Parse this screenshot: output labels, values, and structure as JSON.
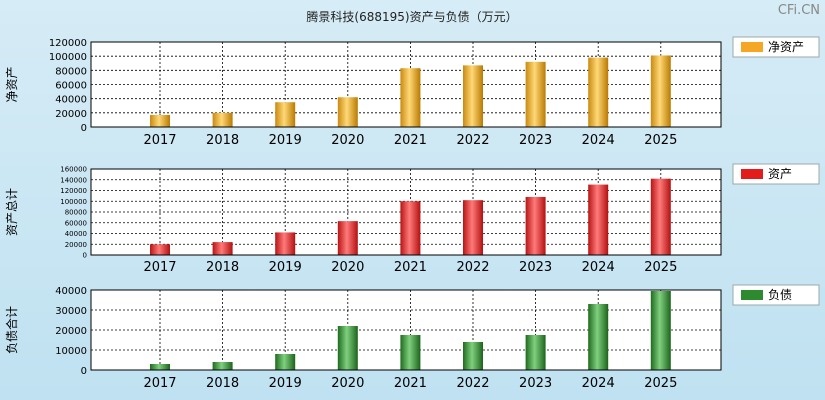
{
  "chart_data": {
    "type": "bar",
    "title": "腾景科技(688195)资产与负债（万元）",
    "watermark": "CFi.CN",
    "categories": [
      "2017",
      "2018",
      "2019",
      "2020",
      "2021",
      "2022",
      "2023",
      "2024",
      "2025"
    ],
    "panels": [
      {
        "name": "净资产",
        "ylabel": "净资产",
        "legend": "净资产",
        "color": "#f5a623",
        "ylim": [
          0,
          120000
        ],
        "yticks": [
          "0",
          "20000",
          "40000",
          "60000",
          "80000",
          "100000",
          "120000"
        ],
        "values": [
          17000,
          20000,
          35000,
          42000,
          83000,
          87000,
          92000,
          98000,
          101000
        ]
      },
      {
        "name": "资产",
        "ylabel": "资产总计",
        "legend": "资产",
        "color": "#e21b1b",
        "ylim": [
          0,
          160000
        ],
        "yticks": [
          "0",
          "20000",
          "40000",
          "60000",
          "80000",
          "100000",
          "120000",
          "140000",
          "160000"
        ],
        "values": [
          20000,
          24000,
          42000,
          63000,
          100000,
          102000,
          108000,
          131000,
          142000
        ]
      },
      {
        "name": "负债",
        "ylabel": "负债合计",
        "legend": "负债",
        "color": "#2e8a2e",
        "ylim": [
          0,
          40000
        ],
        "yticks": [
          "0",
          "10000",
          "20000",
          "30000",
          "40000"
        ],
        "values": [
          3000,
          4000,
          8000,
          22000,
          17500,
          14000,
          17500,
          33000,
          39500
        ]
      }
    ]
  }
}
